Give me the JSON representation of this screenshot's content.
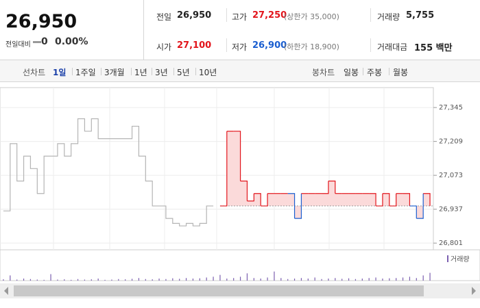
{
  "header": {
    "price": "26,950",
    "change_label": "전일대비",
    "change": "0",
    "change_rate": "0.00%",
    "stats": [
      {
        "label": "전일",
        "value": "26,950",
        "color": "#222222"
      },
      {
        "label": "고가",
        "value": "27,250",
        "note": "(상한가 35,000)",
        "color": "#e2141b"
      },
      {
        "label": "거래량",
        "value": "5,755",
        "color": "#222222"
      },
      {
        "label": "시가",
        "value": "27,100",
        "color": "#e2141b"
      },
      {
        "label": "저가",
        "value": "26,900",
        "note": "(하한가 18,900)",
        "color": "#1a5ed0"
      },
      {
        "label": "거래대금",
        "value": "155 백만",
        "color": "#222222"
      }
    ]
  },
  "tabs": {
    "line_label": "선차트",
    "line": [
      "1일",
      "1주일",
      "3개월",
      "1년",
      "3년",
      "5년",
      "10년"
    ],
    "selected": 0,
    "candle_label": "봉차트",
    "candle": [
      "일봉",
      "주봉",
      "월봉"
    ]
  },
  "chart_data": {
    "type": "line",
    "ylim": [
      26774,
      27425
    ],
    "yticks": [
      {
        "value": 27345,
        "label": "27,345"
      },
      {
        "value": 27209,
        "label": "27,209"
      },
      {
        "value": 27073,
        "label": "27,073"
      },
      {
        "value": 26937,
        "label": "26,937"
      },
      {
        "value": 26801,
        "label": "26,801"
      }
    ],
    "baseline": 26950,
    "series": [
      {
        "color": "#b4b4b4",
        "values": [
          26930,
          27200,
          27050,
          27150,
          27100,
          27000,
          27150,
          27150,
          27200,
          27150,
          27200,
          27300,
          27250,
          27300,
          27220,
          27220,
          27220,
          27220,
          27220,
          27270,
          27150,
          27050,
          26950,
          26950,
          26900,
          26880,
          26870,
          26880,
          26870,
          26880,
          26950,
          26950,
          null,
          null,
          null,
          null,
          null,
          null,
          null,
          null,
          null,
          null,
          null,
          null,
          null,
          null,
          null,
          null,
          null,
          null,
          null,
          null,
          null,
          null,
          null,
          null,
          null,
          null,
          null,
          null,
          null,
          null,
          null,
          null
        ]
      },
      {
        "color": "#e2141b",
        "below_color": "#1a5ed0",
        "fill": "#fbdada",
        "values": [
          null,
          null,
          null,
          null,
          null,
          null,
          null,
          null,
          null,
          null,
          null,
          null,
          null,
          null,
          null,
          null,
          null,
          null,
          null,
          null,
          null,
          null,
          null,
          null,
          null,
          null,
          null,
          null,
          null,
          null,
          null,
          null,
          26950,
          27250,
          27250,
          27050,
          26970,
          27000,
          26950,
          27000,
          27000,
          27000,
          27000,
          26900,
          27000,
          27000,
          27000,
          27000,
          27050,
          27000,
          27000,
          27000,
          27000,
          27000,
          27000,
          26950,
          27000,
          26950,
          27000,
          27000,
          26950,
          26900,
          27000,
          26950
        ]
      }
    ],
    "volume": {
      "name": "거래량",
      "color": "#7b5fb0",
      "ylim": [
        0,
        100
      ],
      "values": [
        5,
        20,
        4,
        8,
        6,
        4,
        3,
        25,
        4,
        5,
        3,
        6,
        4,
        5,
        8,
        3,
        4,
        6,
        5,
        7,
        10,
        6,
        5,
        8,
        6,
        9,
        7,
        10,
        8,
        9,
        12,
        15,
        22,
        8,
        10,
        15,
        28,
        10,
        8,
        12,
        35,
        10,
        6,
        8,
        10,
        8,
        12,
        6,
        8,
        10,
        7,
        9,
        6,
        8,
        10,
        12,
        8,
        9,
        10,
        12,
        15,
        10,
        20,
        30
      ]
    }
  }
}
